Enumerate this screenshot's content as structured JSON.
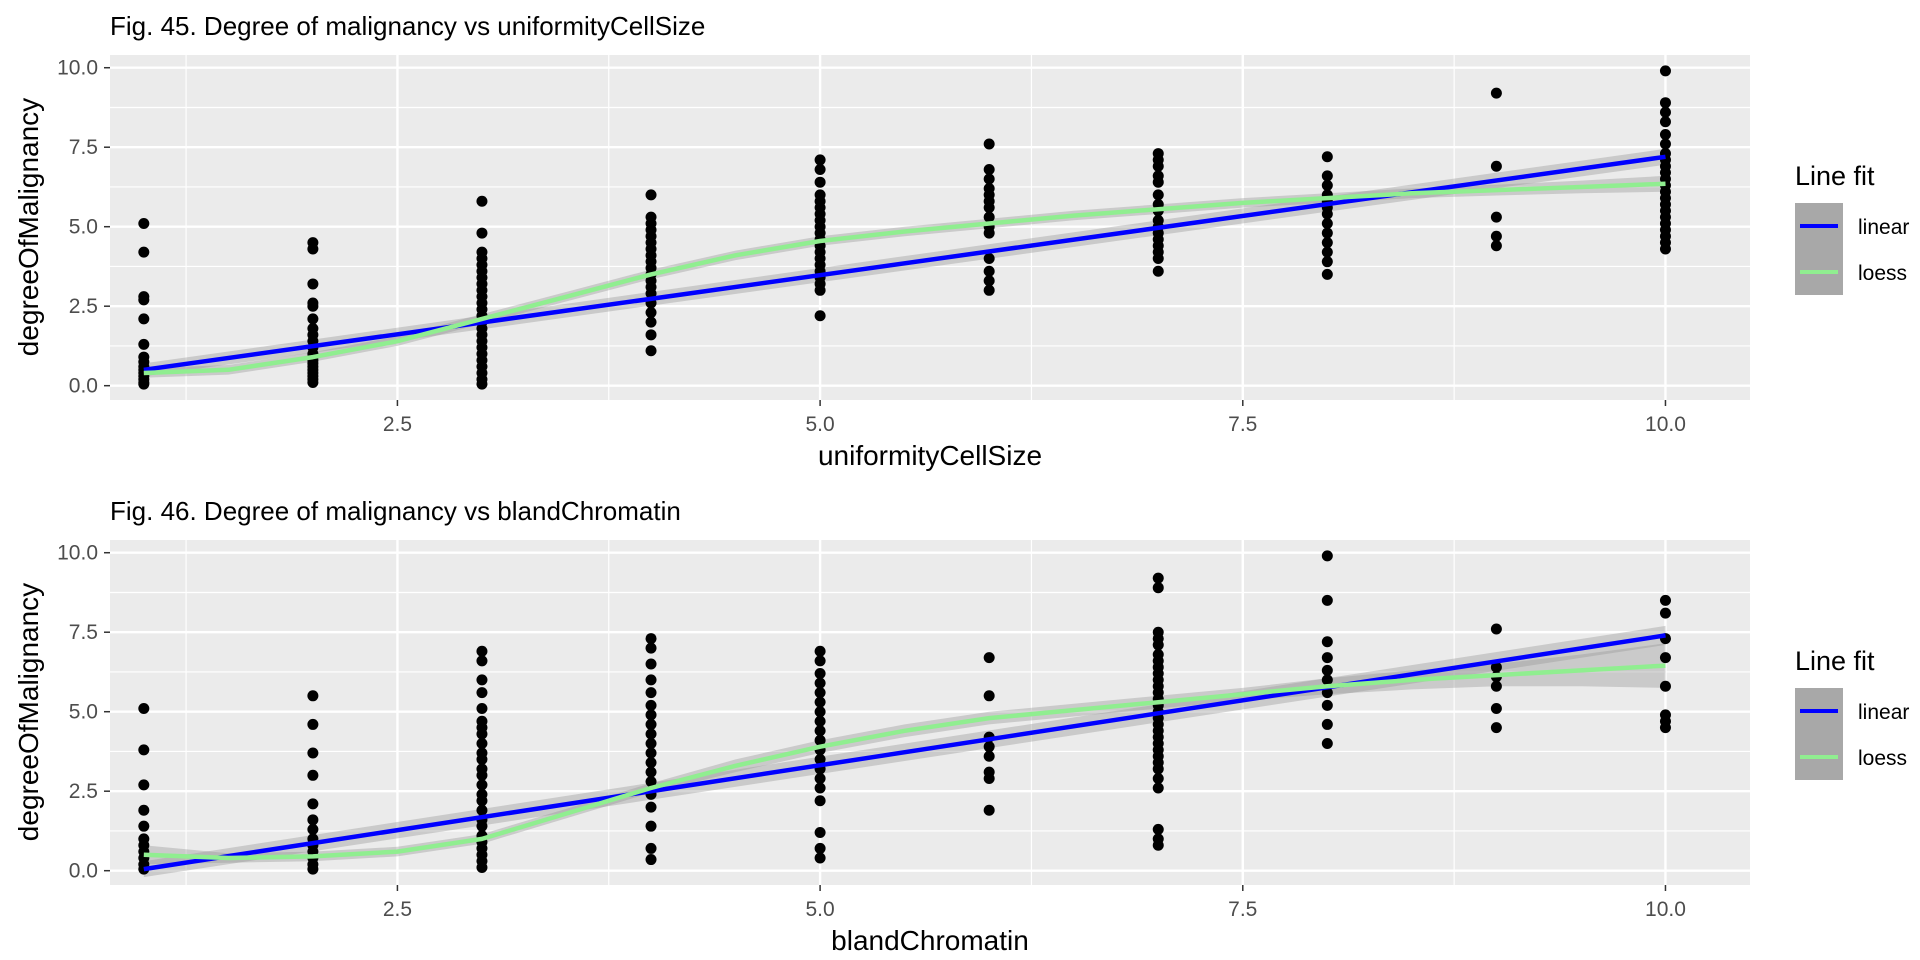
{
  "chart_data": [
    {
      "type": "scatter",
      "title": "Fig. 45. Degree of malignancy vs uniformityCellSize",
      "xlabel": "uniformityCellSize",
      "ylabel": "degreeOfMalignancy",
      "xlim": [
        0.8,
        10.5
      ],
      "ylim": [
        -0.45,
        10.4
      ],
      "x_ticks": [
        2.5,
        5.0,
        7.5,
        10.0
      ],
      "x_tick_labels": [
        "2.5",
        "5.0",
        "7.5",
        "10.0"
      ],
      "y_ticks": [
        0.0,
        2.5,
        5.0,
        7.5,
        10.0
      ],
      "y_tick_labels": [
        "0.0",
        "2.5",
        "5.0",
        "7.5",
        "10.0"
      ],
      "grid": true,
      "legend": {
        "title": "Line fit",
        "placement": "right",
        "entries": [
          {
            "label": "linear",
            "color": "#0000ff"
          },
          {
            "label": "loess",
            "color": "#90ee90"
          }
        ]
      },
      "points": [
        {
          "x": 1,
          "y": [
            5.1,
            4.2,
            2.8,
            2.7,
            2.1,
            1.3,
            0.9,
            0.75,
            0.6,
            0.5,
            0.4,
            0.3,
            0.2,
            0.1,
            0.05
          ]
        },
        {
          "x": 2,
          "y": [
            4.5,
            4.3,
            3.2,
            2.6,
            2.5,
            2.1,
            1.8,
            1.6,
            1.4,
            1.2,
            1.0,
            0.9,
            0.8,
            0.7,
            0.6,
            0.5,
            0.4,
            0.3,
            0.2,
            0.1
          ]
        },
        {
          "x": 3,
          "y": [
            5.8,
            4.8,
            4.2,
            4.0,
            3.8,
            3.6,
            3.4,
            3.2,
            3.0,
            2.8,
            2.6,
            2.4,
            2.2,
            2.0,
            1.8,
            1.6,
            1.4,
            1.2,
            1.0,
            0.8,
            0.6,
            0.4,
            0.2,
            0.05
          ]
        },
        {
          "x": 4,
          "y": [
            6.0,
            5.3,
            5.1,
            4.9,
            4.7,
            4.5,
            4.3,
            4.1,
            3.9,
            3.7,
            3.5,
            3.3,
            3.1,
            2.9,
            2.6,
            2.3,
            2.0,
            1.6,
            1.1
          ]
        },
        {
          "x": 5,
          "y": [
            7.1,
            6.8,
            6.4,
            6.0,
            5.8,
            5.6,
            5.4,
            5.2,
            5.0,
            4.8,
            4.6,
            4.4,
            4.2,
            4.0,
            3.8,
            3.6,
            3.4,
            3.2,
            3.0,
            2.2
          ]
        },
        {
          "x": 6,
          "y": [
            7.6,
            6.8,
            6.5,
            6.2,
            6.0,
            5.8,
            5.6,
            5.3,
            5.0,
            4.8,
            4.0,
            3.6,
            3.3,
            3.0
          ]
        },
        {
          "x": 7,
          "y": [
            7.3,
            7.1,
            6.9,
            6.6,
            6.4,
            6.0,
            5.7,
            5.5,
            5.2,
            5.0,
            4.8,
            4.6,
            4.4,
            4.2,
            4.0,
            3.6
          ]
        },
        {
          "x": 8,
          "y": [
            7.2,
            6.6,
            6.3,
            6.0,
            5.8,
            5.6,
            5.4,
            5.1,
            4.8,
            4.5,
            4.2,
            3.9,
            3.5
          ]
        },
        {
          "x": 9,
          "y": [
            9.2,
            6.9,
            5.3,
            4.7,
            4.4
          ]
        },
        {
          "x": 10,
          "y": [
            9.9,
            8.9,
            8.6,
            8.3,
            7.9,
            7.6,
            7.3,
            7.1,
            6.9,
            6.7,
            6.5,
            6.3,
            6.1,
            5.9,
            5.7,
            5.5,
            5.3,
            5.1,
            4.9,
            4.7,
            4.5,
            4.3
          ]
        }
      ],
      "series": [
        {
          "name": "linear",
          "color": "#0000ff",
          "x": [
            1,
            10
          ],
          "y": [
            0.5,
            7.2
          ],
          "se_lower": [
            0.3,
            6.95
          ],
          "se_upper": [
            0.7,
            7.45
          ]
        },
        {
          "name": "loess",
          "color": "#90ee90",
          "x": [
            1,
            1.5,
            2,
            2.5,
            3,
            3.5,
            4,
            4.5,
            5,
            5.5,
            6,
            6.5,
            7,
            7.5,
            8,
            8.5,
            9,
            9.5,
            10
          ],
          "y": [
            0.4,
            0.5,
            0.9,
            1.4,
            2.1,
            2.8,
            3.5,
            4.1,
            4.55,
            4.85,
            5.1,
            5.35,
            5.55,
            5.75,
            5.9,
            6.05,
            6.15,
            6.25,
            6.35
          ],
          "se_lower": [
            0.25,
            0.35,
            0.75,
            1.25,
            1.95,
            2.65,
            3.35,
            3.95,
            4.4,
            4.7,
            4.95,
            5.2,
            5.4,
            5.6,
            5.75,
            5.9,
            5.98,
            6.05,
            6.1
          ],
          "se_upper": [
            0.55,
            0.65,
            1.05,
            1.55,
            2.25,
            2.95,
            3.65,
            4.25,
            4.7,
            5.0,
            5.25,
            5.5,
            5.7,
            5.9,
            6.05,
            6.2,
            6.32,
            6.45,
            6.6
          ]
        }
      ]
    },
    {
      "type": "scatter",
      "title": "Fig. 46. Degree of malignancy vs blandChromatin",
      "xlabel": "blandChromatin",
      "ylabel": "degreeOfMalignancy",
      "xlim": [
        0.8,
        10.5
      ],
      "ylim": [
        -0.45,
        10.4
      ],
      "x_ticks": [
        2.5,
        5.0,
        7.5,
        10.0
      ],
      "x_tick_labels": [
        "2.5",
        "5.0",
        "7.5",
        "10.0"
      ],
      "y_ticks": [
        0.0,
        2.5,
        5.0,
        7.5,
        10.0
      ],
      "y_tick_labels": [
        "0.0",
        "2.5",
        "5.0",
        "7.5",
        "10.0"
      ],
      "grid": true,
      "legend": {
        "title": "Line fit",
        "placement": "right",
        "entries": [
          {
            "label": "linear",
            "color": "#0000ff"
          },
          {
            "label": "loess",
            "color": "#90ee90"
          }
        ]
      },
      "points": [
        {
          "x": 1,
          "y": [
            5.1,
            3.8,
            2.7,
            1.9,
            1.4,
            1.0,
            0.8,
            0.6,
            0.4,
            0.2,
            0.05
          ]
        },
        {
          "x": 2,
          "y": [
            5.5,
            4.6,
            3.7,
            3.0,
            2.1,
            1.6,
            1.3,
            1.0,
            0.8,
            0.6,
            0.4,
            0.2,
            0.05
          ]
        },
        {
          "x": 3,
          "y": [
            6.9,
            6.6,
            6.0,
            5.6,
            5.1,
            4.7,
            4.5,
            4.3,
            4.0,
            3.7,
            3.5,
            3.2,
            3.0,
            2.7,
            2.4,
            2.2,
            1.9,
            1.6,
            1.4,
            1.1,
            0.9,
            0.7,
            0.5,
            0.3,
            0.1
          ]
        },
        {
          "x": 4,
          "y": [
            7.3,
            7.0,
            6.5,
            6.0,
            5.6,
            5.2,
            4.9,
            4.6,
            4.3,
            4.0,
            3.7,
            3.4,
            3.1,
            2.8,
            2.4,
            2.0,
            1.4,
            0.7,
            0.35
          ]
        },
        {
          "x": 5,
          "y": [
            6.9,
            6.6,
            6.2,
            5.9,
            5.6,
            5.3,
            5.0,
            4.7,
            4.4,
            4.1,
            3.8,
            3.5,
            3.2,
            2.9,
            2.6,
            2.2,
            1.2,
            0.7,
            0.4
          ]
        },
        {
          "x": 6,
          "y": [
            6.7,
            5.5,
            4.2,
            3.9,
            3.6,
            3.1,
            2.9,
            1.9
          ]
        },
        {
          "x": 7,
          "y": [
            9.2,
            8.9,
            7.5,
            7.3,
            7.1,
            6.8,
            6.6,
            6.4,
            6.2,
            6.0,
            5.8,
            5.6,
            5.4,
            5.2,
            5.0,
            4.8,
            4.6,
            4.4,
            4.2,
            4.0,
            3.8,
            3.6,
            3.4,
            3.2,
            2.9,
            2.6,
            1.3,
            1.0,
            0.8
          ]
        },
        {
          "x": 8,
          "y": [
            9.9,
            8.5,
            7.2,
            6.7,
            6.3,
            6.0,
            5.6,
            5.2,
            4.6,
            4.0
          ]
        },
        {
          "x": 9,
          "y": [
            7.6,
            6.4,
            6.1,
            5.8,
            5.1,
            4.5
          ]
        },
        {
          "x": 10,
          "y": [
            8.5,
            8.1,
            7.3,
            6.7,
            5.8,
            4.9,
            4.7,
            4.5
          ]
        }
      ],
      "series": [
        {
          "name": "linear",
          "color": "#0000ff",
          "x": [
            1,
            10
          ],
          "y": [
            0.05,
            7.4
          ],
          "se_lower": [
            -0.2,
            7.1
          ],
          "se_upper": [
            0.3,
            7.7
          ]
        },
        {
          "name": "loess",
          "color": "#90ee90",
          "x": [
            1,
            1.5,
            2,
            2.5,
            3,
            3.5,
            4,
            4.5,
            5,
            5.5,
            6,
            6.5,
            7,
            7.5,
            8,
            8.5,
            9,
            9.5,
            10
          ],
          "y": [
            0.5,
            0.4,
            0.45,
            0.6,
            1.0,
            1.8,
            2.6,
            3.3,
            3.9,
            4.4,
            4.8,
            5.05,
            5.3,
            5.55,
            5.8,
            6.0,
            6.15,
            6.3,
            6.45
          ],
          "se_lower": [
            0.2,
            0.25,
            0.3,
            0.45,
            0.85,
            1.65,
            2.45,
            3.1,
            3.7,
            4.2,
            4.6,
            4.85,
            5.1,
            5.35,
            5.55,
            5.7,
            5.8,
            5.8,
            5.75
          ],
          "se_upper": [
            0.8,
            0.55,
            0.6,
            0.75,
            1.15,
            1.95,
            2.75,
            3.5,
            4.1,
            4.6,
            5.0,
            5.25,
            5.5,
            5.75,
            6.05,
            6.3,
            6.5,
            6.8,
            7.15
          ]
        }
      ]
    }
  ]
}
